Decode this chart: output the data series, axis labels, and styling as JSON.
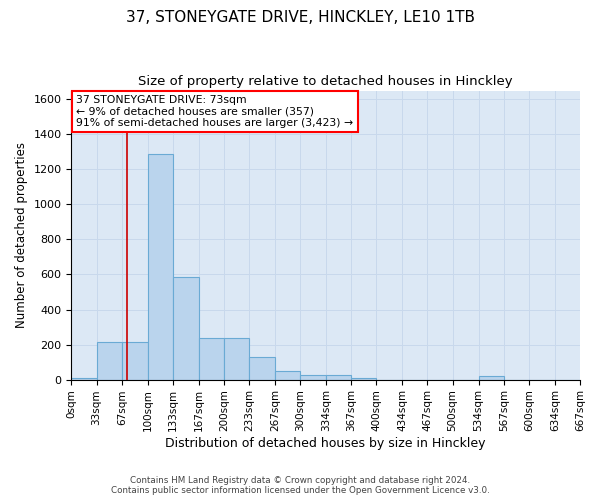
{
  "title": "37, STONEYGATE DRIVE, HINCKLEY, LE10 1TB",
  "subtitle": "Size of property relative to detached houses in Hinckley",
  "xlabel": "Distribution of detached houses by size in Hinckley",
  "ylabel": "Number of detached properties",
  "footer_line1": "Contains HM Land Registry data © Crown copyright and database right 2024.",
  "footer_line2": "Contains public sector information licensed under the Open Government Licence v3.0.",
  "bar_edges": [
    0,
    33,
    67,
    100,
    133,
    167,
    200,
    233,
    267,
    300,
    334,
    367,
    400,
    434,
    467,
    500,
    534,
    567,
    600,
    634,
    667
  ],
  "bar_heights": [
    10,
    215,
    215,
    1290,
    585,
    235,
    235,
    130,
    50,
    28,
    25,
    10,
    0,
    0,
    0,
    0,
    20,
    0,
    0,
    0
  ],
  "bar_color": "#bad4ed",
  "bar_edge_color": "#6aaad4",
  "bg_color": "#dce8f5",
  "ylim": [
    0,
    1650
  ],
  "yticks": [
    0,
    200,
    400,
    600,
    800,
    1000,
    1200,
    1400,
    1600
  ],
  "red_line_x": 73,
  "annotation_text_line1": "37 STONEYGATE DRIVE: 73sqm",
  "annotation_text_line2": "← 9% of detached houses are smaller (357)",
  "annotation_text_line3": "91% of semi-detached houses are larger (3,423) →",
  "background_color": "#ffffff",
  "grid_color": "#c8d8ec",
  "title_fontsize": 11,
  "subtitle_fontsize": 9.5,
  "tick_label_fontsize": 7.5,
  "ylabel_fontsize": 8.5,
  "xlabel_fontsize": 9
}
